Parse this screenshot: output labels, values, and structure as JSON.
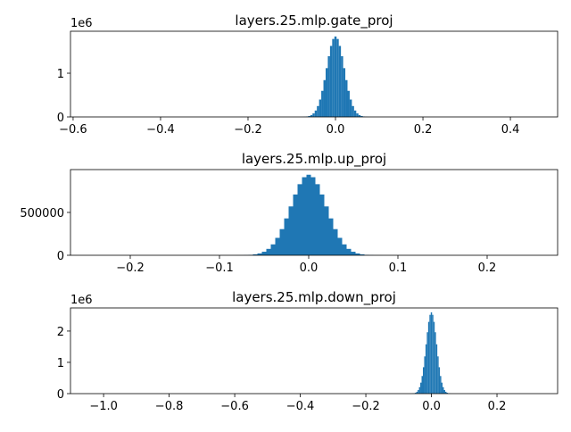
{
  "chart_data": [
    {
      "type": "histogram",
      "title": "layers.25.mlp.gate_proj",
      "color": "#1f77b4",
      "bins": [
        -0.0825,
        -0.0775,
        -0.0725,
        -0.0675,
        -0.0625,
        -0.0575,
        -0.0525,
        -0.0475,
        -0.0425,
        -0.0375,
        -0.0325,
        -0.0275,
        -0.0225,
        -0.0175,
        -0.0125,
        -0.0075,
        -0.0025,
        0.0025,
        0.0075,
        0.0125,
        0.0175,
        0.0225,
        0.0275,
        0.0325,
        0.0375,
        0.0425,
        0.0475,
        0.0525,
        0.0575,
        0.0625,
        0.0675,
        0.0725,
        0.0775,
        0.0825
      ],
      "counts": [
        600,
        1600,
        4000,
        9400,
        20400,
        42000,
        80800,
        146500,
        249000,
        398000,
        597000,
        842000,
        1116000,
        1389000,
        1624000,
        1783000,
        1840000,
        1783000,
        1624000,
        1389000,
        1116000,
        842000,
        597000,
        398000,
        249000,
        146500,
        80800,
        42000,
        20400,
        9400,
        4000,
        1600,
        600
      ],
      "xlim": [
        -0.606,
        0.508
      ],
      "ylim": [
        0,
        1960000
      ],
      "xticks": [
        {
          "value": -0.6,
          "label": "−0.6"
        },
        {
          "value": -0.4,
          "label": "−0.4"
        },
        {
          "value": -0.2,
          "label": "−0.2"
        },
        {
          "value": 0,
          "label": "0.0"
        },
        0.2,
        0.4
      ],
      "yticks": [
        0,
        {
          "value": 1000000,
          "label": "1"
        }
      ],
      "y_offset_text": "1e6"
    },
    {
      "type": "histogram",
      "title": "layers.25.mlp.up_proj",
      "color": "#1f77b4",
      "bins": [
        -0.0825,
        -0.0775,
        -0.0725,
        -0.0675,
        -0.0625,
        -0.0575,
        -0.0525,
        -0.0475,
        -0.0425,
        -0.0375,
        -0.0325,
        -0.0275,
        -0.0225,
        -0.0175,
        -0.0125,
        -0.0075,
        -0.0025,
        0.0025,
        0.0075,
        0.0125,
        0.0175,
        0.0225,
        0.0275,
        0.0325,
        0.0375,
        0.0425,
        0.0475,
        0.0525,
        0.0575,
        0.0625,
        0.0675,
        0.0725,
        0.0775,
        0.0825
      ],
      "counts": [
        320,
        830,
        2070,
        4790,
        10430,
        21430,
        41270,
        74820,
        127200,
        203300,
        305200,
        430300,
        570100,
        709500,
        829600,
        911000,
        940000,
        911000,
        829600,
        709500,
        570100,
        430300,
        305200,
        203300,
        127200,
        74820,
        41270,
        21430,
        10430,
        4790,
        2070,
        830,
        320
      ],
      "xlim": [
        -0.267,
        0.279
      ],
      "ylim": [
        0,
        1000000
      ],
      "xticks": [
        {
          "value": -0.2,
          "label": "−0.2"
        },
        {
          "value": -0.1,
          "label": "−0.1"
        },
        {
          "value": 0,
          "label": "0.0"
        },
        0.1,
        0.2
      ],
      "yticks": [
        0,
        500000
      ]
    },
    {
      "type": "histogram",
      "title": "layers.25.mlp.down_proj",
      "color": "#1f77b4",
      "bins": [
        -0.066,
        -0.062,
        -0.058,
        -0.054,
        -0.05,
        -0.046,
        -0.042,
        -0.038,
        -0.034,
        -0.03,
        -0.026,
        -0.022,
        -0.018,
        -0.014,
        -0.01,
        -0.006,
        -0.002,
        0.002,
        0.006,
        0.01,
        0.014,
        0.018,
        0.022,
        0.026,
        0.03,
        0.034,
        0.038,
        0.042,
        0.046,
        0.05,
        0.054,
        0.058,
        0.062,
        0.066
      ],
      "counts": [
        880,
        2290,
        5720,
        13260,
        28860,
        59280,
        114100,
        207000,
        351800,
        562400,
        844200,
        1190300,
        1576900,
        1962500,
        2294500,
        2519900,
        2600000,
        2519900,
        2294500,
        1962500,
        1576900,
        1190300,
        844200,
        562400,
        351800,
        207000,
        114100,
        59280,
        28860,
        13260,
        5720,
        2290,
        880
      ],
      "xlim": [
        -1.101,
        0.385
      ],
      "ylim": [
        0,
        2740000
      ],
      "xticks": [
        {
          "value": -1.0,
          "label": "−1.0"
        },
        {
          "value": -0.8,
          "label": "−0.8"
        },
        {
          "value": -0.6,
          "label": "−0.6"
        },
        {
          "value": -0.4,
          "label": "−0.4"
        },
        {
          "value": -0.2,
          "label": "−0.2"
        },
        {
          "value": 0,
          "label": "0.0"
        },
        0.2
      ],
      "yticks": [
        0,
        {
          "value": 1000000,
          "label": "1"
        },
        {
          "value": 2000000,
          "label": "2"
        }
      ],
      "y_offset_text": "1e6"
    }
  ]
}
